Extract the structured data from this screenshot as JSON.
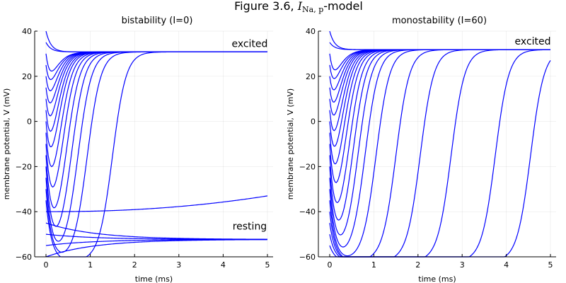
{
  "figure": {
    "title_prefix": "Figure 3.6, ",
    "title_italic": "I",
    "title_subscript": "Na, p",
    "title_suffix": "-model"
  },
  "chart_data": [
    {
      "type": "line",
      "title": "bistability (I=0)",
      "xlabel": "time (ms)",
      "ylabel": "membrane potential, V (mV)",
      "xlim": [
        0,
        5
      ],
      "ylim": [
        -60,
        40
      ],
      "xticks": [
        0,
        1,
        2,
        3,
        4,
        5
      ],
      "yticks": [
        -60,
        -40,
        -20,
        0,
        20,
        40
      ],
      "grid": true,
      "line_color": "#0000ff",
      "annotations": [
        {
          "text": "excited",
          "x": 4.6,
          "y": 33
        },
        {
          "text": "resting",
          "x": 4.6,
          "y": -48
        }
      ],
      "attractors": {
        "excited": 30.8,
        "resting": -52.3
      },
      "series": [
        {
          "v0": 40,
          "t_cross": -0.12
        },
        {
          "v0": 35,
          "t_cross": -0.08
        },
        {
          "v0": 30,
          "t_cross": -0.05
        },
        {
          "v0": 25,
          "t_cross": -0.02
        },
        {
          "v0": 20,
          "t_cross": 0.02
        },
        {
          "v0": 15,
          "t_cross": 0.06
        },
        {
          "v0": 10,
          "t_cross": 0.1
        },
        {
          "v0": 5,
          "t_cross": 0.15
        },
        {
          "v0": 0,
          "t_cross": 0.2
        },
        {
          "v0": -5,
          "t_cross": 0.27
        },
        {
          "v0": -10,
          "t_cross": 0.35
        },
        {
          "v0": -15,
          "t_cross": 0.45
        },
        {
          "v0": -20,
          "t_cross": 0.57
        },
        {
          "v0": -25,
          "t_cross": 0.72
        },
        {
          "v0": -30,
          "t_cross": 0.93
        },
        {
          "v0": -35,
          "t_cross": 1.5
        },
        {
          "v0": -40,
          "v_end": -33,
          "t_cross": null
        },
        {
          "v0": -45,
          "t_cross": null
        },
        {
          "v0": -50,
          "t_cross": null
        },
        {
          "v0": -55,
          "t_cross": null
        },
        {
          "v0": -60,
          "t_cross": null
        }
      ]
    },
    {
      "type": "line",
      "title": "monostability (I=60)",
      "xlabel": "time (ms)",
      "ylabel": "membrane potential, V (mV)",
      "xlim": [
        0,
        5
      ],
      "ylim": [
        -60,
        40
      ],
      "xticks": [
        0,
        1,
        2,
        3,
        4,
        5
      ],
      "yticks": [
        -60,
        -40,
        -20,
        0,
        20,
        40
      ],
      "grid": true,
      "line_color": "#0000ff",
      "annotations": [
        {
          "text": "excited",
          "x": 4.6,
          "y": 34
        }
      ],
      "attractors": {
        "excited": 31.8
      },
      "series": [
        {
          "v0": 40,
          "t_cross": -0.12
        },
        {
          "v0": 35,
          "t_cross": -0.08
        },
        {
          "v0": 30,
          "t_cross": -0.05
        },
        {
          "v0": 25,
          "t_cross": -0.02
        },
        {
          "v0": 20,
          "t_cross": 0.02
        },
        {
          "v0": 15,
          "t_cross": 0.06
        },
        {
          "v0": 10,
          "t_cross": 0.1
        },
        {
          "v0": 5,
          "t_cross": 0.15
        },
        {
          "v0": 0,
          "t_cross": 0.2
        },
        {
          "v0": -5,
          "t_cross": 0.26
        },
        {
          "v0": -10,
          "t_cross": 0.33
        },
        {
          "v0": -15,
          "t_cross": 0.42
        },
        {
          "v0": -20,
          "t_cross": 0.52
        },
        {
          "v0": -25,
          "t_cross": 0.64
        },
        {
          "v0": -30,
          "t_cross": 0.8
        },
        {
          "v0": -35,
          "t_cross": 1.05
        },
        {
          "v0": -40,
          "t_cross": 1.5
        },
        {
          "v0": -45,
          "t_cross": 2.05
        },
        {
          "v0": -50,
          "t_cross": 2.75
        },
        {
          "v0": -55,
          "t_cross": 3.75
        },
        {
          "v0": -60,
          "t_cross": 4.55
        }
      ]
    }
  ]
}
